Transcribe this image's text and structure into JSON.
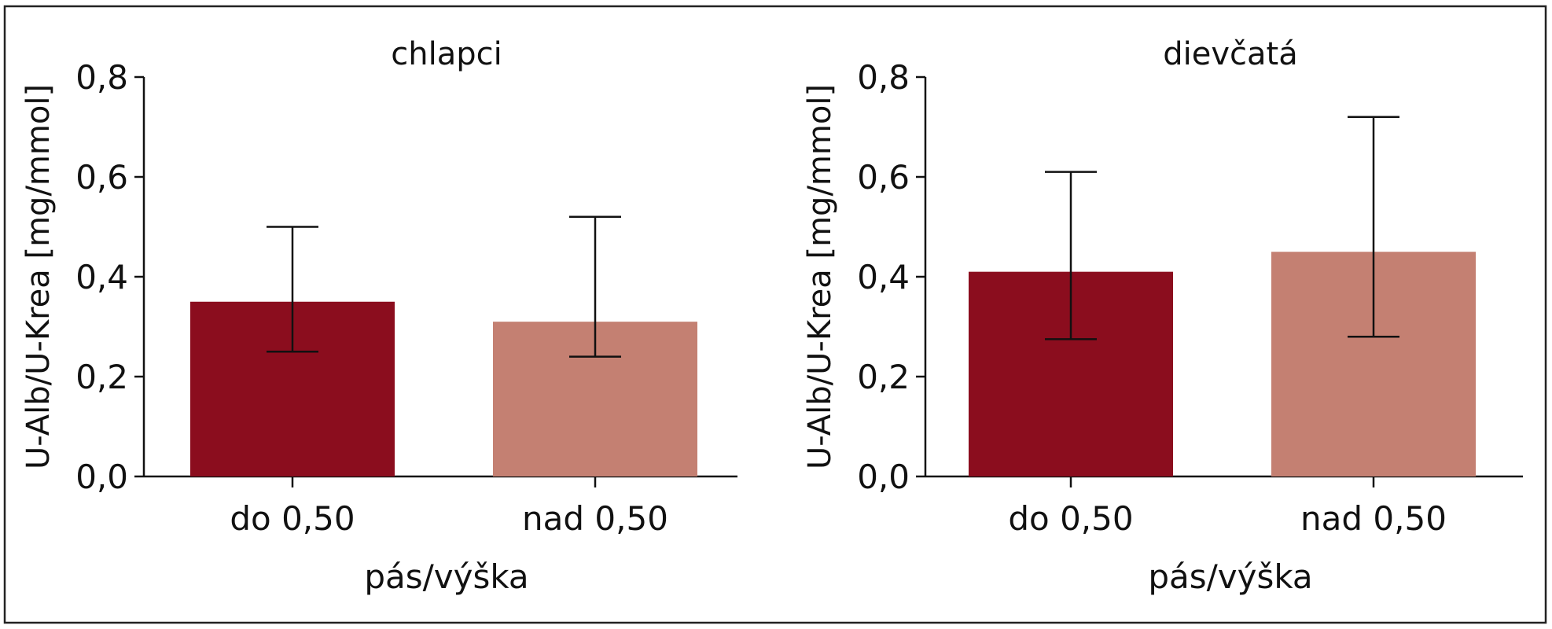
{
  "figure": {
    "frame": true
  },
  "chart_data": [
    {
      "type": "bar",
      "title": "chlapci",
      "xlabel": "pás/výška",
      "ylabel": "U-Alb/U-Krea [mg/mmol]",
      "ylim": [
        0,
        0.8
      ],
      "yticks": [
        "0,0",
        "0,2",
        "0,4",
        "0,6",
        "0,8"
      ],
      "categories": [
        "do 0,50",
        "nad 0,50"
      ],
      "values": [
        0.35,
        0.31
      ],
      "error_low": [
        0.25,
        0.24
      ],
      "error_high": [
        0.5,
        0.52
      ],
      "colors": [
        "#8b0d1e",
        "#c48072"
      ],
      "grid": false
    },
    {
      "type": "bar",
      "title": "dievčatá",
      "xlabel": "pás/výška",
      "ylabel": "U-Alb/U-Krea [mg/mmol]",
      "ylim": [
        0,
        0.8
      ],
      "yticks": [
        "0,0",
        "0,2",
        "0,4",
        "0,6",
        "0,8"
      ],
      "categories": [
        "do 0,50",
        "nad 0,50"
      ],
      "values": [
        0.41,
        0.45
      ],
      "error_low": [
        0.275,
        0.28
      ],
      "error_high": [
        0.61,
        0.72
      ],
      "colors": [
        "#8b0d1e",
        "#c48072"
      ],
      "grid": false
    }
  ]
}
